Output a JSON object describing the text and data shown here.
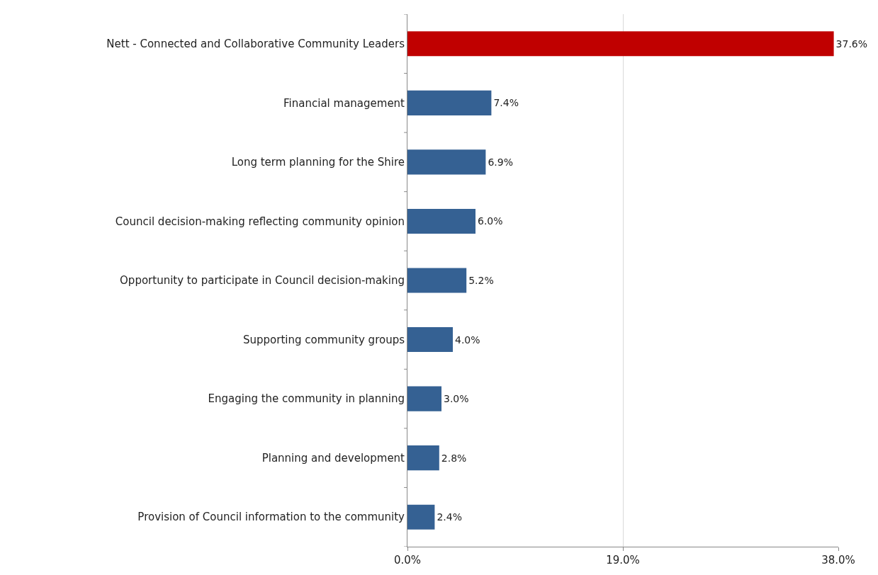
{
  "chart_data": {
    "type": "bar",
    "orientation": "horizontal",
    "categories": [
      "Nett - Connected and Collaborative Community Leaders",
      "Financial management",
      "Long term planning for the Shire",
      "Council decision-making reflecting community opinion",
      "Opportunity to participate in Council decision-making",
      "Supporting community groups",
      "Engaging the community in planning",
      "Planning and development",
      "Provision of Council information to the community"
    ],
    "values": [
      37.6,
      7.4,
      6.9,
      6.0,
      5.2,
      4.0,
      3.0,
      2.8,
      2.4
    ],
    "colors": [
      "#c00000",
      "#356193",
      "#356193",
      "#356193",
      "#356193",
      "#356193",
      "#356193",
      "#356193",
      "#356193"
    ],
    "value_labels": [
      "37.6%",
      "7.4%",
      "6.9%",
      "6.0%",
      "5.2%",
      "4.0%",
      "3.0%",
      "2.8%",
      "2.4%"
    ],
    "xlim": [
      0,
      38
    ],
    "xticks": [
      {
        "value": 0,
        "label": "0.0%"
      },
      {
        "value": 19,
        "label": "19.0%"
      },
      {
        "value": 38,
        "label": "38.0%"
      }
    ],
    "grid": "x"
  }
}
